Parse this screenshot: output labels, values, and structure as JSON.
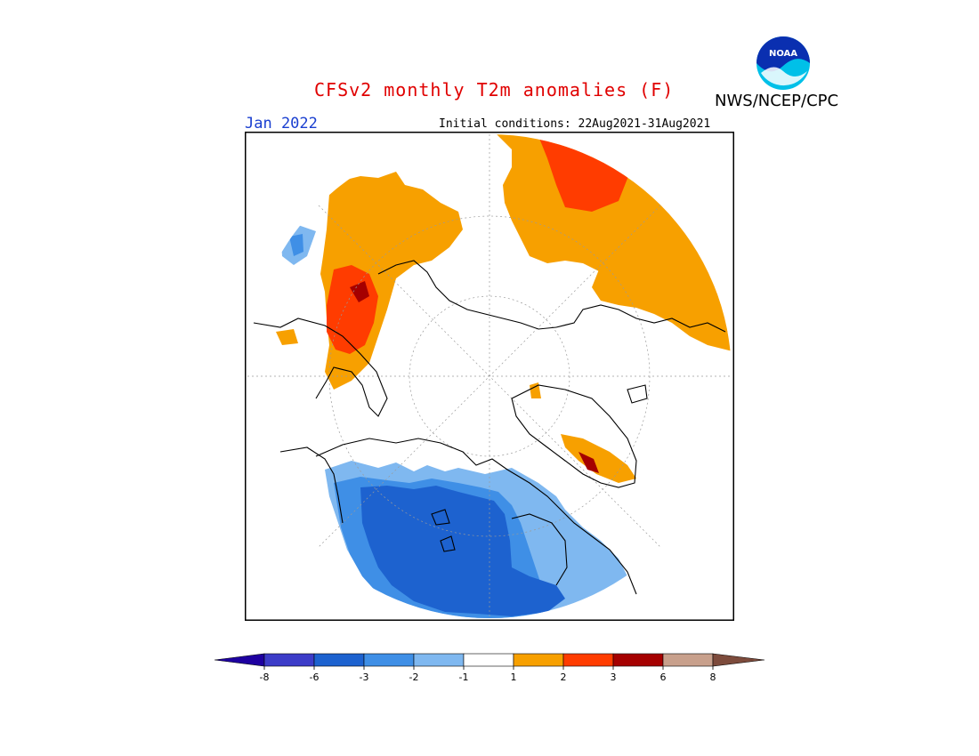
{
  "header": {
    "title": "CFSv2 monthly T2m anomalies (F)",
    "agency": "NWS/NCEP/CPC",
    "target_month": "Jan 2022",
    "initial_conditions": "Initial conditions: 22Aug2021-31Aug2021",
    "logo_text": "NOAA"
  },
  "map": {
    "projection": "north polar stereographic",
    "colors": {
      "m8": "#1e00a0",
      "m6": "#3c3cc8",
      "m3": "#1d62cf",
      "m2": "#3f8fe6",
      "m1": "#7fb8f0",
      "neutral": "#ffffff",
      "p1": "#f7a000",
      "p2": "#ff3c00",
      "p3": "#a50000",
      "p6": "#c8a08c",
      "p8": "#7d4b3c"
    }
  },
  "legend": {
    "ticks": [
      "-8",
      "-6",
      "-3",
      "-2",
      "-1",
      "1",
      "2",
      "3",
      "6",
      "8"
    ],
    "colors": [
      "#1e00a0",
      "#3c3cc8",
      "#1d62cf",
      "#3f8fe6",
      "#7fb8f0",
      "#ffffff",
      "#f7a000",
      "#ff3c00",
      "#a50000",
      "#c8a08c",
      "#7d4b3c"
    ]
  }
}
